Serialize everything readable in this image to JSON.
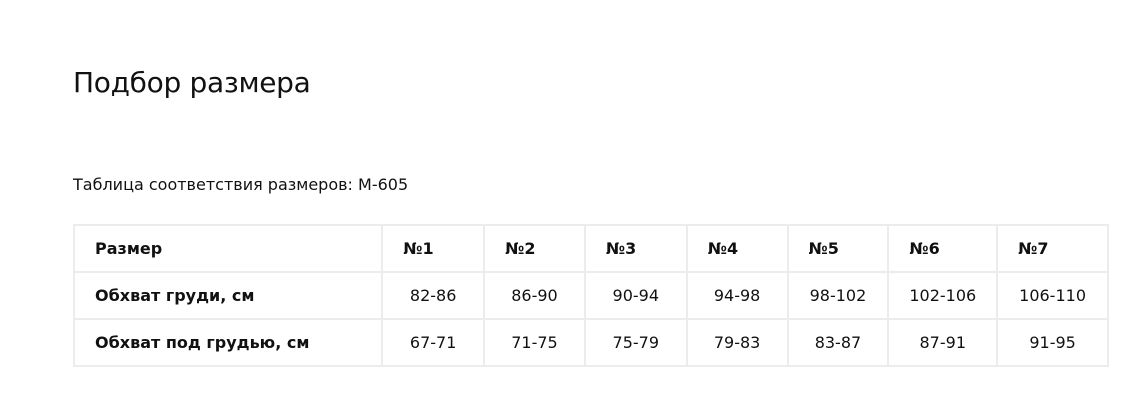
{
  "title": "Подбор размера",
  "subtitle": "Таблица соответствия размеров: М-605",
  "table": {
    "headers": [
      "Размер",
      "№1",
      "№2",
      "№3",
      "№4",
      "№5",
      "№6",
      "№7"
    ],
    "rows": [
      [
        "Обхват груди, см",
        "82-86",
        "86-90",
        "90-94",
        "94-98",
        "98-102",
        "102-106",
        "106-110"
      ],
      [
        "Обхват под грудью, см",
        "67-71",
        "71-75",
        "75-79",
        "79-83",
        "83-87",
        "87-91",
        "91-95"
      ]
    ]
  }
}
